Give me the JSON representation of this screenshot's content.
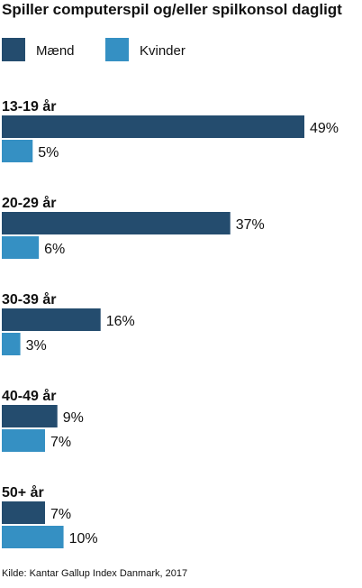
{
  "chart_data": {
    "type": "bar",
    "orientation": "horizontal",
    "title": "Spiller computerspil og/eller spilkonsol dagligt",
    "categories": [
      "13-19 år",
      "20-29 år",
      "30-39 år",
      "40-49 år",
      "50+ år"
    ],
    "series": [
      {
        "name": "Mænd",
        "values": [
          49,
          37,
          16,
          9,
          7
        ],
        "color": "#244c6e"
      },
      {
        "name": "Kvinder",
        "values": [
          5,
          6,
          3,
          7,
          10
        ],
        "color": "#3590c3"
      }
    ],
    "value_suffix": "%",
    "legend_position": "top-left",
    "grid": false,
    "xlim": [
      0,
      49
    ],
    "source": "Kilde: Kantar Gallup Index Danmark, 2017"
  }
}
